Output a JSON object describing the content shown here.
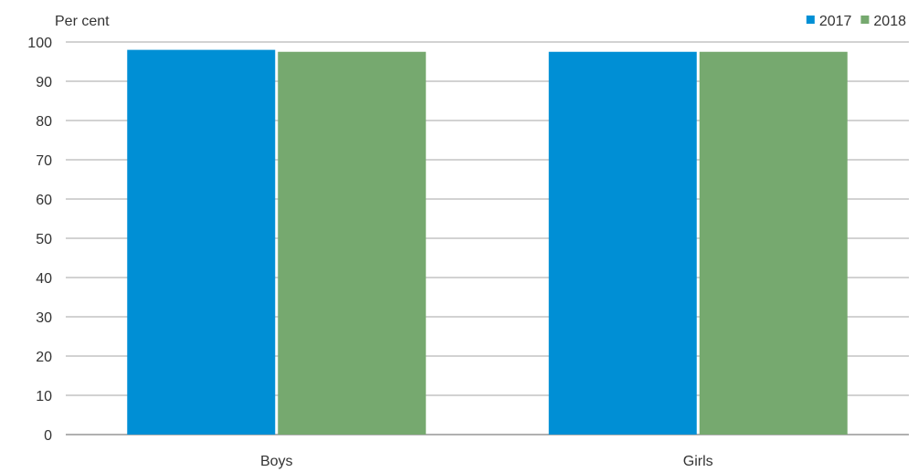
{
  "chart_data": {
    "type": "bar",
    "ylabel": "Per cent",
    "categories": [
      "Boys",
      "Girls"
    ],
    "series": [
      {
        "name": "2017",
        "color": "#008fd5",
        "values": [
          98,
          97.5
        ]
      },
      {
        "name": "2018",
        "color": "#76a96f",
        "values": [
          97.5,
          97.5
        ]
      }
    ],
    "ylim": [
      0,
      100
    ],
    "yticks": [
      0,
      10,
      20,
      30,
      40,
      50,
      60,
      70,
      80,
      90,
      100
    ],
    "grid": true,
    "legend_position": "top-right"
  }
}
